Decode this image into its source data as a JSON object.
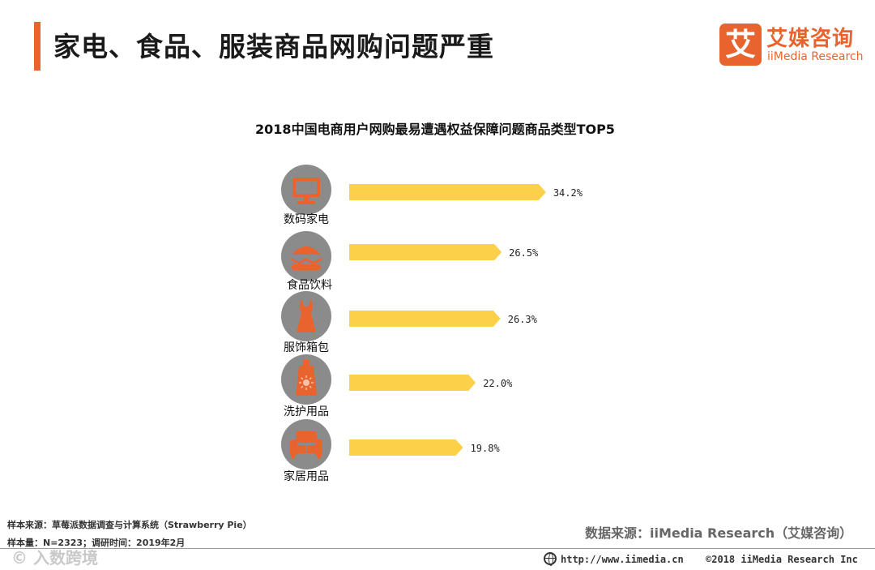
{
  "header": {
    "title": "家电、食品、服装商品网购问题严重"
  },
  "logo": {
    "mark": "艾",
    "name_cn": "艾媒咨询",
    "name_en": "iiMedia Research"
  },
  "chart_data": {
    "type": "bar",
    "orientation": "horizontal",
    "title": "2018中国电商用户网购最易遭遇权益保障问题商品类型TOP5",
    "categories": [
      "数码家电",
      "食品饮料",
      "服饰箱包",
      "洗护用品",
      "家居用品"
    ],
    "values": [
      34.2,
      26.5,
      26.3,
      22.0,
      19.8
    ],
    "value_labels": [
      "34.2%",
      "26.5%",
      "26.3%",
      "22.0%",
      "19.8%"
    ],
    "icons": [
      "monitor-icon",
      "burger-icon",
      "dress-icon",
      "lotion-bottle-icon",
      "sofa-icon"
    ],
    "colors": {
      "bar": "#fdd04a",
      "icon_circle": "#8b8b8b",
      "icon_glyph": "#e9632f"
    },
    "grid": false,
    "legend": "none"
  },
  "footer": {
    "sample_source": "样本来源：草莓派数据调查与计算系统（Strawberry  Pie）",
    "sample_size": "样本量：N=2323；调研时间：2019年2月",
    "data_source": "数据来源：iiMedia Research（艾媒咨询）",
    "website": "http://www.iimedia.cn",
    "copyright": "©2018  iiMedia Research  Inc",
    "watermark": "© 入数跨境"
  }
}
